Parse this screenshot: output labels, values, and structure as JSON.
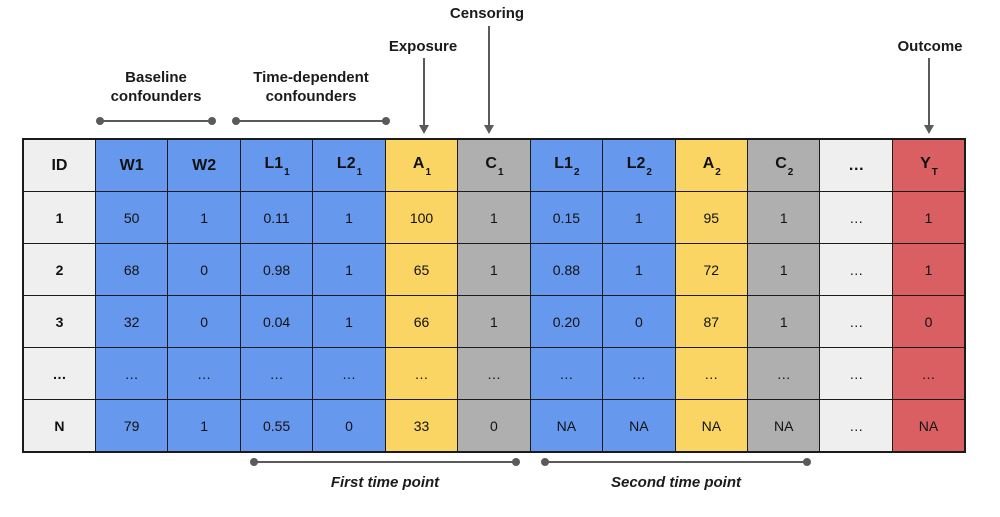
{
  "annotations": {
    "censoring": "Censoring",
    "exposure": "Exposure",
    "outcome": "Outcome",
    "baseline_confounders": "Baseline confounders",
    "time_dependent_confounders": "Time-dependent confounders",
    "first_time_point": "First time point",
    "second_time_point": "Second time point"
  },
  "colors": {
    "blue": "#6699EE",
    "yellow": "#FAD564",
    "gray": "#AFAFAF",
    "lightgray": "#EFEFEF",
    "red": "#D95F62",
    "border": "#1B1B1B",
    "annotation": "#5A5A5A"
  },
  "table": {
    "columns": [
      {
        "key": "id",
        "base": "ID",
        "sub": "",
        "color": "lightgray"
      },
      {
        "key": "w1",
        "base": "W1",
        "sub": "",
        "color": "blue"
      },
      {
        "key": "w2",
        "base": "W2",
        "sub": "",
        "color": "blue"
      },
      {
        "key": "l1_1",
        "base": "L1",
        "sub": "1",
        "color": "blue"
      },
      {
        "key": "l2_1",
        "base": "L2",
        "sub": "1",
        "color": "blue"
      },
      {
        "key": "a_1",
        "base": "A",
        "sub": "1",
        "color": "yellow"
      },
      {
        "key": "c_1",
        "base": "C",
        "sub": "1",
        "color": "gray"
      },
      {
        "key": "l1_2",
        "base": "L1",
        "sub": "2",
        "color": "blue"
      },
      {
        "key": "l2_2",
        "base": "L2",
        "sub": "2",
        "color": "blue"
      },
      {
        "key": "a_2",
        "base": "A",
        "sub": "2",
        "color": "yellow"
      },
      {
        "key": "c_2",
        "base": "C",
        "sub": "2",
        "color": "gray"
      },
      {
        "key": "ellipsis",
        "base": "…",
        "sub": "",
        "color": "lightgray"
      },
      {
        "key": "y_t",
        "base": "Y",
        "sub": "T",
        "color": "red"
      }
    ],
    "rows": [
      [
        "1",
        "50",
        "1",
        "0.11",
        "1",
        "100",
        "1",
        "0.15",
        "1",
        "95",
        "1",
        "…",
        "1"
      ],
      [
        "2",
        "68",
        "0",
        "0.98",
        "1",
        "65",
        "1",
        "0.88",
        "1",
        "72",
        "1",
        "…",
        "1"
      ],
      [
        "3",
        "32",
        "0",
        "0.04",
        "1",
        "66",
        "1",
        "0.20",
        "0",
        "87",
        "1",
        "…",
        "0"
      ],
      [
        "…",
        "…",
        "…",
        "…",
        "…",
        "…",
        "…",
        "…",
        "…",
        "…",
        "…",
        "…",
        "…"
      ],
      [
        "N",
        "79",
        "1",
        "0.55",
        "0",
        "33",
        "0",
        "NA",
        "NA",
        "NA",
        "NA",
        "…",
        "NA"
      ]
    ]
  }
}
